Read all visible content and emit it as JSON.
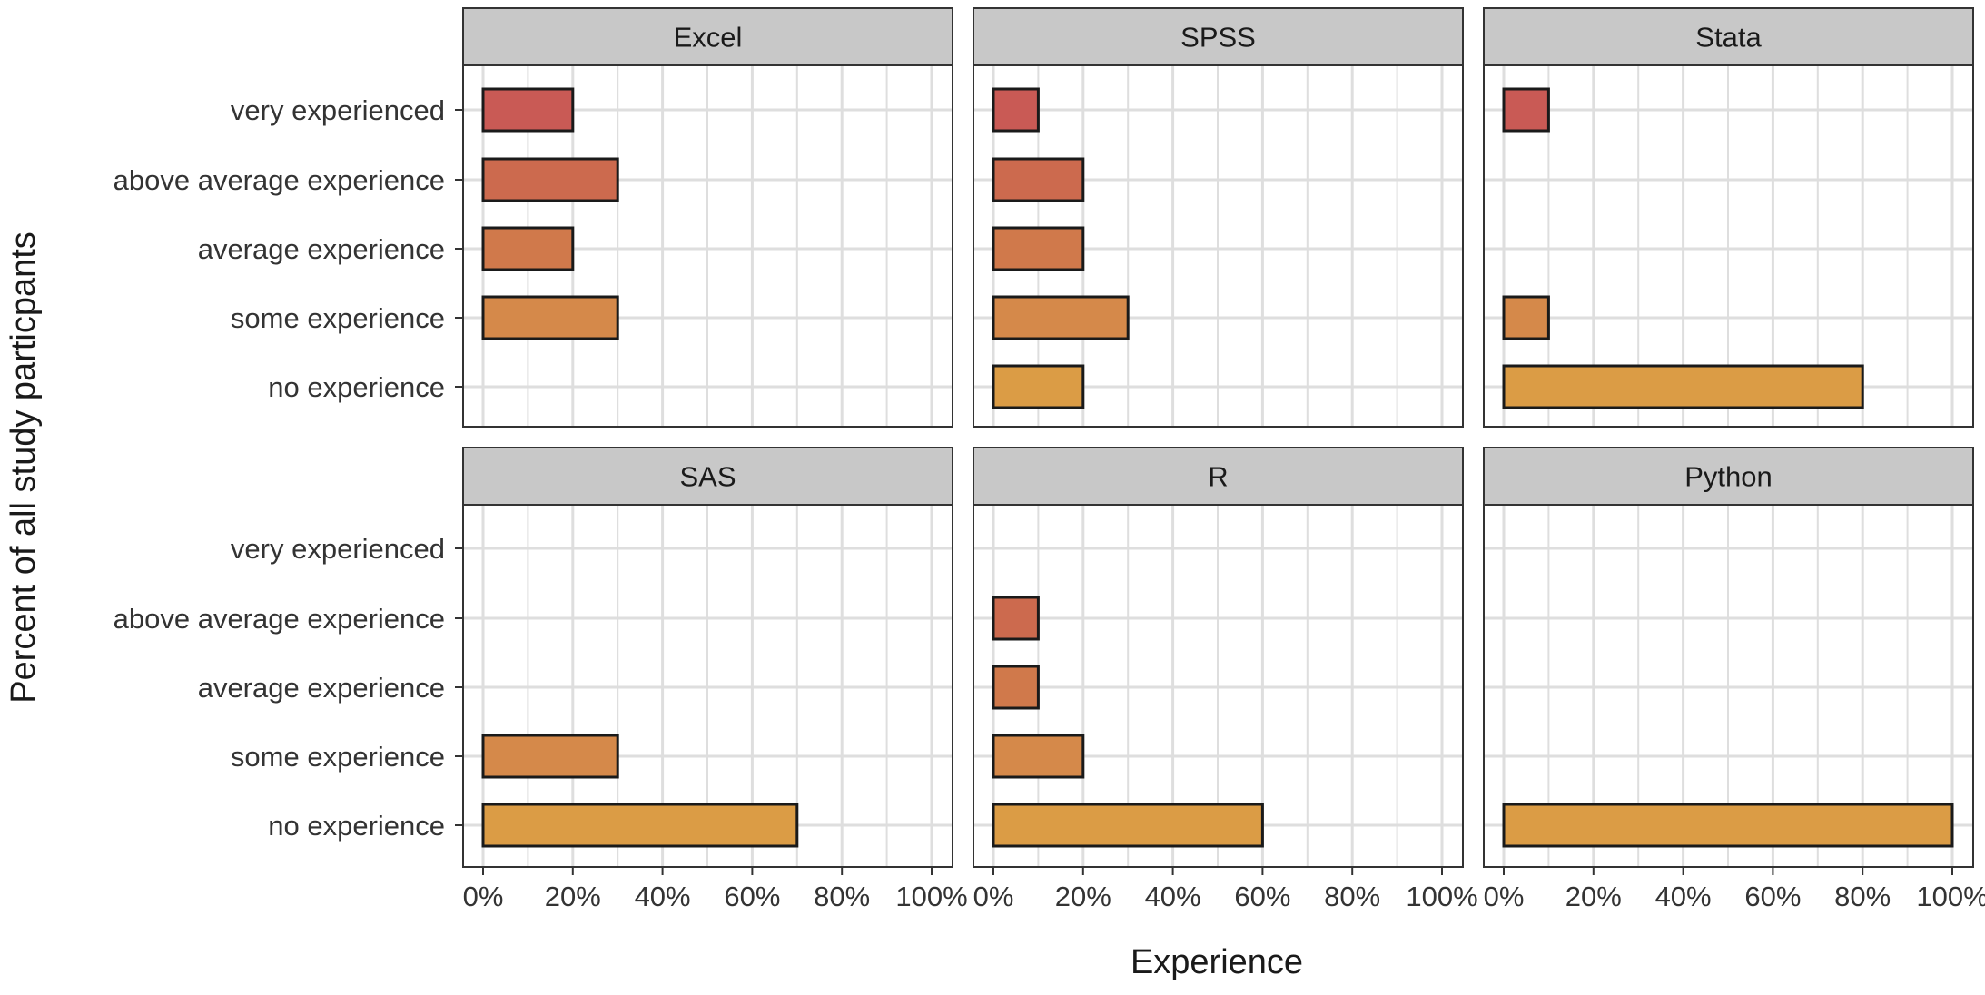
{
  "chart_data": {
    "type": "bar",
    "orientation": "horizontal",
    "layout": "facet-grid 2x3",
    "xlabel": "Experience",
    "ylabel": "Percent of all study particpants",
    "xlim": [
      0,
      100
    ],
    "x_ticks": [
      "0%",
      "20%",
      "40%",
      "60%",
      "80%",
      "100%"
    ],
    "x_tick_values": [
      0,
      20,
      40,
      60,
      80,
      100
    ],
    "categories": [
      "very experienced",
      "above average experience",
      "average experience",
      "some experience",
      "no experience"
    ],
    "grid": true,
    "legend": "none",
    "colors": {
      "very experienced": "#C95A55",
      "above average experience": "#CC6A4E",
      "average experience": "#D0794B",
      "some experience": "#D5894A",
      "no experience": "#DB9C45",
      "strip_fill": "#C8C8C8",
      "bar_outline": "#1a1a1a",
      "grid": "#DEDEDE"
    },
    "panels": [
      {
        "name": "Excel",
        "values": [
          20,
          30,
          20,
          30,
          0
        ]
      },
      {
        "name": "SPSS",
        "values": [
          10,
          20,
          20,
          30,
          20
        ]
      },
      {
        "name": "Stata",
        "values": [
          10,
          0,
          0,
          10,
          80
        ]
      },
      {
        "name": "SAS",
        "values": [
          0,
          0,
          0,
          30,
          70
        ]
      },
      {
        "name": "R",
        "values": [
          0,
          10,
          10,
          20,
          60
        ]
      },
      {
        "name": "Python",
        "values": [
          0,
          0,
          0,
          0,
          100
        ]
      }
    ]
  }
}
